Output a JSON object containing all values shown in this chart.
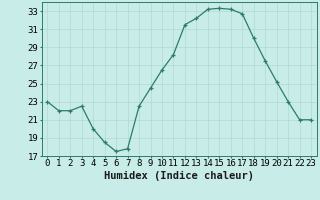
{
  "x": [
    0,
    1,
    2,
    3,
    4,
    5,
    6,
    7,
    8,
    9,
    10,
    11,
    12,
    13,
    14,
    15,
    16,
    17,
    18,
    19,
    20,
    21,
    22,
    23
  ],
  "y": [
    23,
    22,
    22,
    22.5,
    20,
    18.5,
    17.5,
    17.8,
    22.5,
    24.5,
    26.5,
    28.2,
    31.5,
    32.2,
    33.2,
    33.3,
    33.2,
    32.7,
    30.0,
    27.5,
    25.2,
    23.0,
    21.0,
    21.0
  ],
  "line_color": "#2d7b6e",
  "marker": "+",
  "marker_color": "#2d7b6e",
  "bg_color": "#c8ece8",
  "grid_color": "#b0d8d2",
  "xlabel": "Humidex (Indice chaleur)",
  "ylim": [
    17,
    34
  ],
  "xlim": [
    -0.5,
    23.5
  ],
  "yticks": [
    17,
    19,
    21,
    23,
    25,
    27,
    29,
    31,
    33
  ],
  "xtick_labels": [
    "0",
    "1",
    "2",
    "3",
    "4",
    "5",
    "6",
    "7",
    "8",
    "9",
    "10",
    "11",
    "12",
    "13",
    "14",
    "15",
    "16",
    "17",
    "18",
    "19",
    "20",
    "21",
    "22",
    "23"
  ],
  "tick_fontsize": 6.5,
  "xlabel_fontsize": 7.5
}
